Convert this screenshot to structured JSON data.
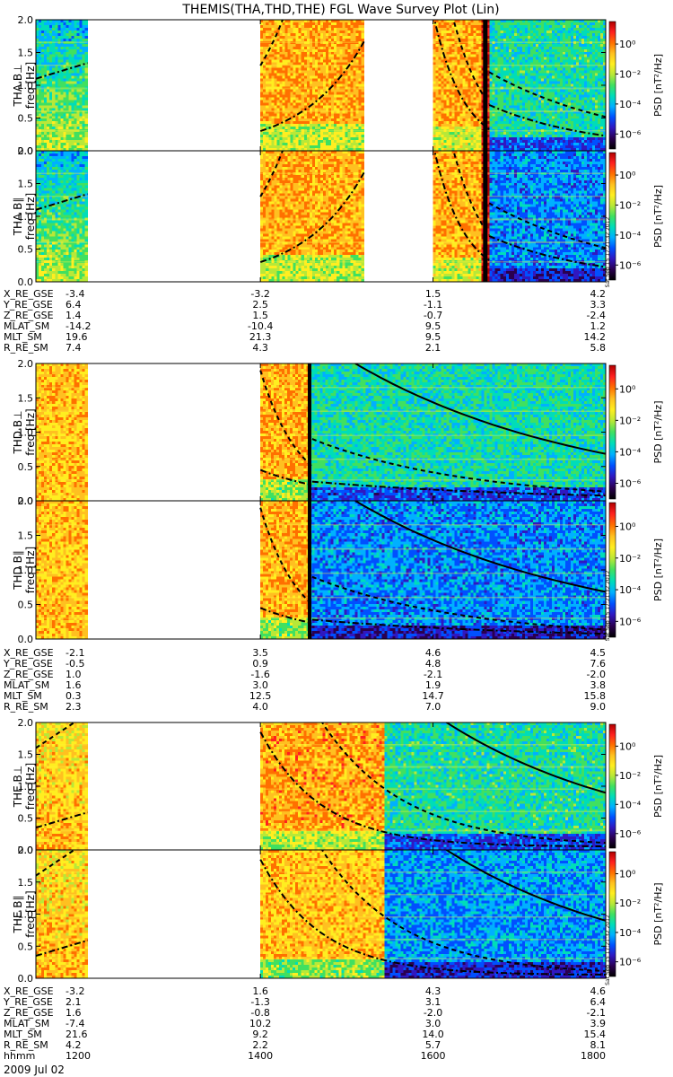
{
  "title": "THEMIS(THA,THD,THE) FGL Wave Survey Plot (Lin)",
  "stamp": "Sat Sep 15 17:21:32 2012",
  "colorbar": {
    "label": "PSD [nT²/Hz]",
    "ticks": [
      "10⁰",
      "10⁻²",
      "10⁻⁴",
      "10⁻⁶"
    ],
    "log_range": [
      -7,
      1.5
    ]
  },
  "colors": {
    "scale": [
      "#000000",
      "#2a0050",
      "#3018c0",
      "#0050ff",
      "#00b0ff",
      "#00ddb8",
      "#40e060",
      "#b8e838",
      "#ffee20",
      "#ffc020",
      "#ff7000",
      "#ff2020",
      "#b00000"
    ]
  },
  "freq_label": "freq [Hz]",
  "hhmm_label": "hhmm",
  "date_label": "2009 Jul 02",
  "time_ticks": [
    "1200",
    "1400",
    "1600",
    "1800"
  ],
  "chart_data": [
    {
      "type": "heatmap",
      "probe": "THA",
      "panels": [
        {
          "label": "THA B⊥",
          "component": "perp"
        },
        {
          "label": "THA B∥",
          "component": "par"
        }
      ],
      "x": {
        "label": "hhmm",
        "ticks": [
          "1200",
          "1400",
          "1600",
          "1800"
        ],
        "range": [
          1140,
          1800
        ]
      },
      "y": {
        "label": "freq [Hz]",
        "range": [
          0.0,
          2.0
        ],
        "ticks": [
          "0.0",
          "0.5",
          "1.0",
          "1.5",
          "2.0"
        ]
      },
      "data_intervals": [
        [
          1140,
          1200
        ],
        [
          1400,
          1520
        ],
        [
          1600,
          1800
        ]
      ],
      "ephemeris": {
        "labels": [
          "X_RE_GSE",
          "Y_RE_GSE",
          "Z_RE_GSE",
          "MLAT_SM",
          "MLT_SM",
          "R_RE_SM"
        ],
        "values": [
          [
            "-3.4",
            "-3.2",
            "1.5",
            "4.2"
          ],
          [
            "6.4",
            "2.5",
            "-1.1",
            "3.3"
          ],
          [
            "1.4",
            "1.5",
            "-0.7",
            "-2.4"
          ],
          [
            "-14.2",
            "-10.4",
            "9.5",
            "1.2"
          ],
          [
            "19.6",
            "21.3",
            "9.5",
            "14.2"
          ],
          [
            "7.4",
            "4.3",
            "2.1",
            "5.8"
          ]
        ]
      }
    },
    {
      "type": "heatmap",
      "probe": "THD",
      "panels": [
        {
          "label": "THD B⊥",
          "component": "perp"
        },
        {
          "label": "THD B∥",
          "component": "par"
        }
      ],
      "x": {
        "label": "hhmm",
        "ticks": [
          "1200",
          "1400",
          "1600",
          "1800"
        ],
        "range": [
          1140,
          1800
        ]
      },
      "y": {
        "label": "freq [Hz]",
        "range": [
          0.0,
          2.0
        ],
        "ticks": [
          "0.0",
          "0.5",
          "1.0",
          "1.5",
          "2.0"
        ]
      },
      "data_intervals": [
        [
          1140,
          1200
        ],
        [
          1400,
          1800
        ]
      ],
      "ephemeris": {
        "labels": [
          "X_RE_GSE",
          "Y_RE_GSE",
          "Z_RE_GSE",
          "MLAT_SM",
          "MLT_SM",
          "R_RE_SM"
        ],
        "values": [
          [
            "-2.1",
            "3.5",
            "4.6",
            "4.5"
          ],
          [
            "-0.5",
            "0.9",
            "4.8",
            "7.6"
          ],
          [
            "1.0",
            "-1.6",
            "-2.1",
            "-2.0"
          ],
          [
            "1.6",
            "3.0",
            "1.9",
            "3.8"
          ],
          [
            "0.3",
            "12.5",
            "14.7",
            "15.8"
          ],
          [
            "2.3",
            "4.0",
            "7.0",
            "9.0"
          ]
        ]
      }
    },
    {
      "type": "heatmap",
      "probe": "THE",
      "panels": [
        {
          "label": "THE B⊥",
          "component": "perp"
        },
        {
          "label": "THE B∥",
          "component": "par"
        }
      ],
      "x": {
        "label": "hhmm",
        "ticks": [
          "1200",
          "1400",
          "1600",
          "1800"
        ],
        "range": [
          1140,
          1800
        ]
      },
      "y": {
        "label": "freq [Hz]",
        "range": [
          0.0,
          2.0
        ],
        "ticks": [
          "0.0",
          "0.5",
          "1.0",
          "1.5",
          "2.0"
        ]
      },
      "data_intervals": [
        [
          1140,
          1200
        ],
        [
          1400,
          1800
        ]
      ],
      "ephemeris": {
        "labels": [
          "X_RE_GSE",
          "Y_RE_GSE",
          "Z_RE_GSE",
          "MLAT_SM",
          "MLT_SM",
          "R_RE_SM",
          "hhmm"
        ],
        "values": [
          [
            "-3.2",
            "1.6",
            "4.3",
            "4.6"
          ],
          [
            "2.1",
            "-1.3",
            "3.1",
            "6.4"
          ],
          [
            "1.6",
            "-0.8",
            "-2.0",
            "-2.1"
          ],
          [
            "-7.4",
            "10.2",
            "3.0",
            "3.9"
          ],
          [
            "21.6",
            "9.2",
            "14.0",
            "15.4"
          ],
          [
            "4.2",
            "2.2",
            "5.7",
            "8.1"
          ],
          [
            "1200",
            "1400",
            "1600",
            "1800"
          ]
        ]
      }
    }
  ]
}
